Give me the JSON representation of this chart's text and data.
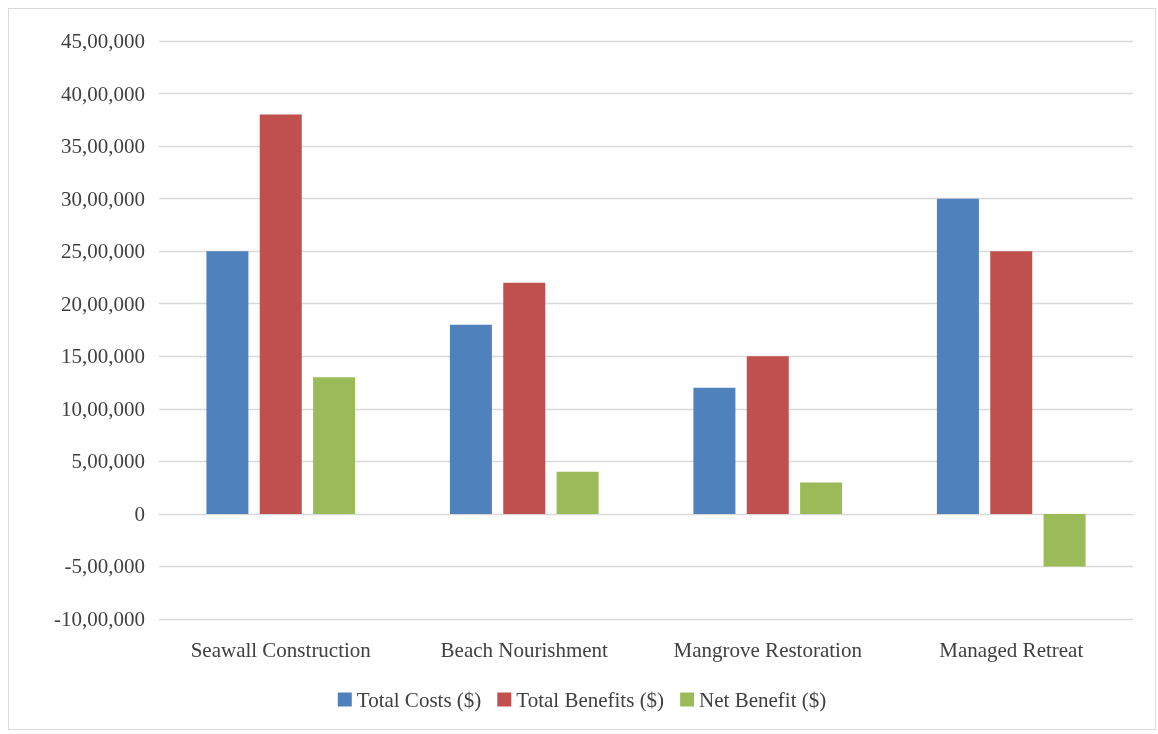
{
  "chart_data": {
    "type": "bar",
    "categories": [
      "Seawall Construction",
      "Beach Nourishment",
      "Mangrove Restoration",
      "Managed Retreat"
    ],
    "series": [
      {
        "name": "Total Costs ($)",
        "color": "#4f81bd",
        "values": [
          2500000,
          1800000,
          1200000,
          3000000
        ]
      },
      {
        "name": "Total Benefits ($)",
        "color": "#c0504d",
        "values": [
          3800000,
          2200000,
          1500000,
          2500000
        ]
      },
      {
        "name": "Net Benefit ($)",
        "color": "#9bbb59",
        "values": [
          1300000,
          400000,
          300000,
          -500000
        ]
      }
    ],
    "ylim": [
      -1000000,
      4500000
    ],
    "yticks": [
      {
        "value": -1000000,
        "label": "-10,00,000"
      },
      {
        "value": -500000,
        "label": "-5,00,000"
      },
      0,
      {
        "value": 500000,
        "label": "5,00,000"
      },
      {
        "value": 1000000,
        "label": "10,00,000"
      },
      {
        "value": 1500000,
        "label": "15,00,000"
      },
      {
        "value": 2000000,
        "label": "20,00,000"
      },
      {
        "value": 2500000,
        "label": "25,00,000"
      },
      {
        "value": 3000000,
        "label": "30,00,000"
      },
      {
        "value": 3500000,
        "label": "35,00,000"
      },
      {
        "value": 4000000,
        "label": "40,00,000"
      },
      {
        "value": 4500000,
        "label": "45,00,000"
      }
    ],
    "grid": "y",
    "legend": "bottom"
  }
}
